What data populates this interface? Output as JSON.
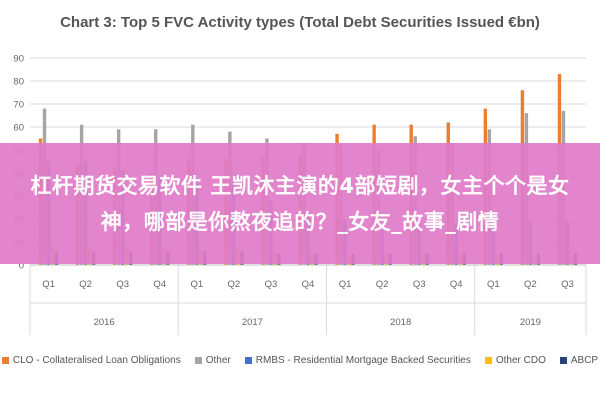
{
  "chart_data": {
    "type": "bar",
    "title": "Chart 3: Top 5 FVC Activity types (Total Debt Securities Issued €bn)",
    "xlabel": "",
    "ylabel": "",
    "ylim": [
      0,
      90
    ],
    "yticks": [
      "0",
      "10",
      "20",
      "30",
      "40",
      "50",
      "60",
      "70",
      "80",
      "90"
    ],
    "grid": true,
    "legend_position": "bottom",
    "categories": [
      "Q1",
      "Q2",
      "Q3",
      "Q4",
      "Q1",
      "Q2",
      "Q3",
      "Q4",
      "Q1",
      "Q2",
      "Q3",
      "Q4",
      "Q1",
      "Q2",
      "Q3"
    ],
    "year_groups": [
      {
        "label": "2016",
        "span": 4
      },
      {
        "label": "2017",
        "span": 4
      },
      {
        "label": "2018",
        "span": 4
      },
      {
        "label": "2019",
        "span": 3
      }
    ],
    "series": [
      {
        "name": "CLO - Collateralised Loan Obligations",
        "color": "#ed7d31",
        "values": [
          55,
          44,
          42,
          40,
          46,
          46,
          47,
          48,
          57,
          61,
          61,
          62,
          68,
          76,
          83
        ]
      },
      {
        "name": "Other",
        "color": "#a5a5a5",
        "values": [
          68,
          61,
          59,
          59,
          61,
          58,
          55,
          53,
          52,
          50,
          56,
          53,
          59,
          66,
          67
        ]
      },
      {
        "name": "RMBS - Residential Mortgage Backed Securities",
        "color": "#4472c4",
        "values": [
          45,
          45,
          41,
          38,
          38,
          36,
          28,
          22,
          20,
          16,
          18,
          18,
          17,
          19,
          19
        ]
      },
      {
        "name": "Other CDO",
        "color": "#ffc000",
        "values": [
          8,
          8,
          7,
          7,
          6,
          6,
          5,
          5,
          4,
          4,
          4,
          4,
          4,
          3,
          3
        ]
      },
      {
        "name": "ABCP",
        "color": "#264478",
        "values": [
          6,
          6,
          6,
          6,
          6,
          6,
          5,
          5,
          5,
          5,
          5,
          5,
          5,
          5,
          5
        ]
      }
    ]
  },
  "overlay": {
    "banner_text": "杠杆期货交易软件 王凯沐主演的4部短剧，女主个个是女神，哪部是你熬夜追的？_女友_故事_剧情"
  }
}
